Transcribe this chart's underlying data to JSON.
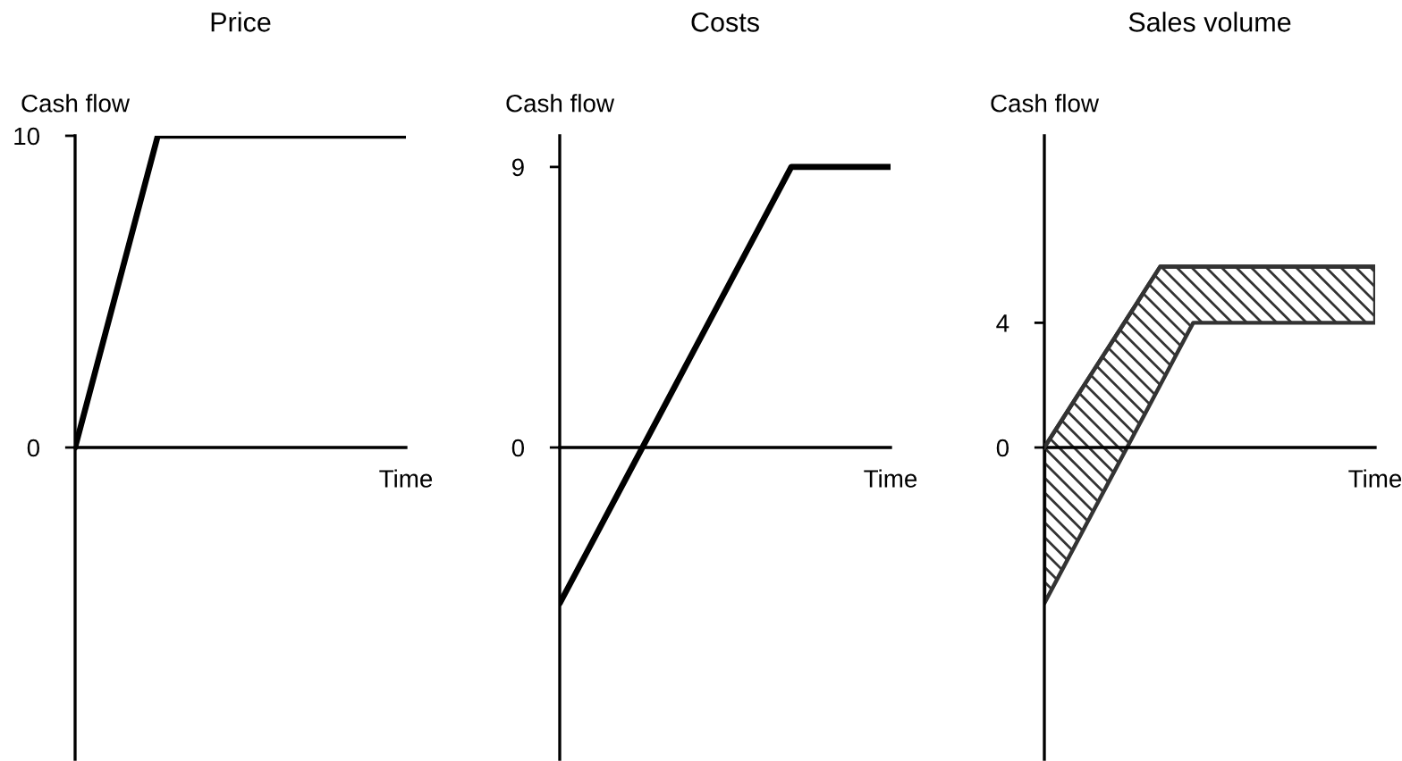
{
  "chart_data": [
    {
      "type": "line",
      "title": "Price",
      "ylabel": "Cash flow",
      "xlabel": "Time",
      "categories": [
        null,
        null,
        null,
        null,
        null
      ],
      "series": [
        {
          "color": "#000000",
          "values": [
            0,
            10,
            10,
            10,
            10
          ]
        }
      ],
      "ylim": [
        -10,
        10
      ],
      "yticks": [
        0,
        10
      ]
    },
    {
      "type": "line",
      "title": "Costs",
      "ylabel": "Cash flow",
      "xlabel": "Time",
      "categories": [
        null,
        null,
        null,
        null,
        null,
        null,
        null,
        null,
        null,
        null,
        null
      ],
      "series": [
        {
          "color": "#000000",
          "values": [
            -5,
            -3,
            -1,
            1,
            3,
            5,
            7,
            9,
            9,
            9,
            9
          ]
        }
      ],
      "ylim": [
        -10,
        10
      ],
      "yticks": [
        0,
        9
      ]
    },
    {
      "type": "line",
      "title": "Sales volume",
      "ylabel": "Cash flow",
      "xlabel": "Time",
      "categories": [
        null,
        null,
        null,
        null,
        null,
        null,
        null,
        null,
        null,
        null,
        null,
        null,
        null,
        null,
        null,
        null,
        null,
        null,
        null,
        null,
        null
      ],
      "series": [
        {
          "color": "#333333",
          "upper": [
            0,
            0.83,
            1.66,
            2.49,
            3.31,
            4.14,
            4.97,
            5.8,
            5.8,
            5.8,
            5.8,
            5.8,
            5.8,
            5.8,
            5.8,
            5.8,
            5.8,
            5.8,
            5.8,
            5.8,
            5.8
          ],
          "values": [
            0,
            0.83,
            1.66,
            2.49,
            3.31,
            4.14,
            4.97,
            5.8,
            5.8,
            5.8,
            5.8,
            5.8,
            5.8,
            5.8,
            5.8,
            5.8,
            5.8,
            5.8,
            5.8,
            5.8,
            5.8
          ],
          "lower": [
            -5,
            -4,
            -3,
            -2,
            -1,
            0,
            1,
            2,
            3,
            4,
            4,
            4,
            4,
            4,
            4,
            4,
            4,
            4,
            4,
            4,
            4
          ]
        }
      ],
      "ylim": [
        -10,
        10
      ],
      "yticks": [
        0,
        4
      ]
    }
  ]
}
